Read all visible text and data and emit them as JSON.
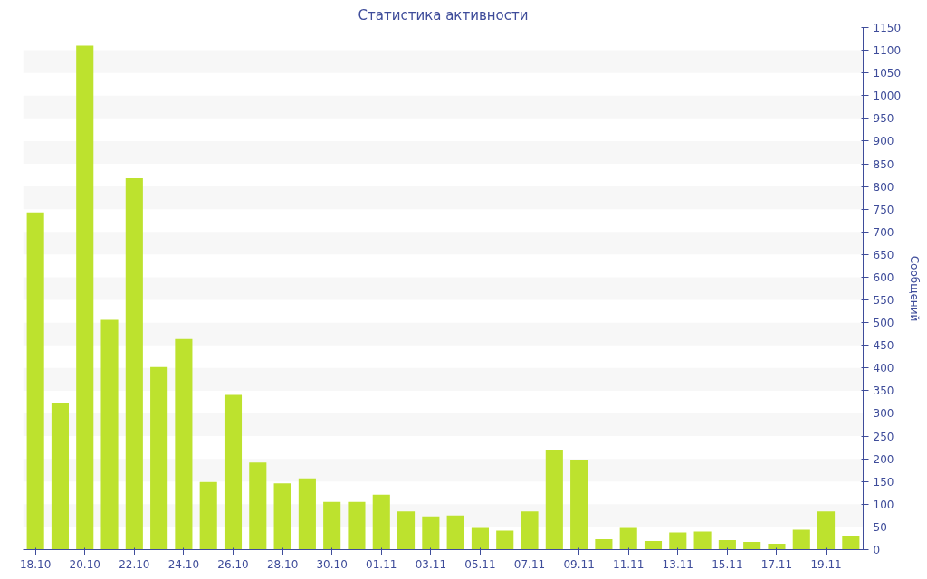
{
  "chart_data": {
    "type": "bar",
    "title": "Статистика активности",
    "ylabel": "Сообщений",
    "categories": [
      "18.10",
      null,
      "20.10",
      null,
      "22.10",
      null,
      "24.10",
      null,
      "26.10",
      null,
      "28.10",
      null,
      "30.10",
      null,
      "01.11",
      null,
      "03.11",
      null,
      "05.11",
      null,
      "07.11",
      null,
      "09.11",
      null,
      "11.11",
      null,
      "13.11",
      null,
      "15.11",
      null,
      "17.11",
      null,
      "19.11",
      null
    ],
    "values": [
      743,
      322,
      1110,
      506,
      818,
      402,
      464,
      149,
      341,
      192,
      146,
      157,
      105,
      105,
      121,
      84,
      73,
      75,
      48,
      42,
      84,
      220,
      197,
      23,
      48,
      19,
      38,
      40,
      21,
      17,
      13,
      44,
      84,
      31
    ],
    "color": "#bde22e",
    "ylim": [
      0,
      1150
    ],
    "yticks": [
      0,
      50,
      100,
      150,
      200,
      250,
      300,
      350,
      400,
      450,
      500,
      550,
      600,
      650,
      700,
      750,
      800,
      850,
      900,
      950,
      1000,
      1050,
      1100,
      1150
    ],
    "grid": false
  }
}
